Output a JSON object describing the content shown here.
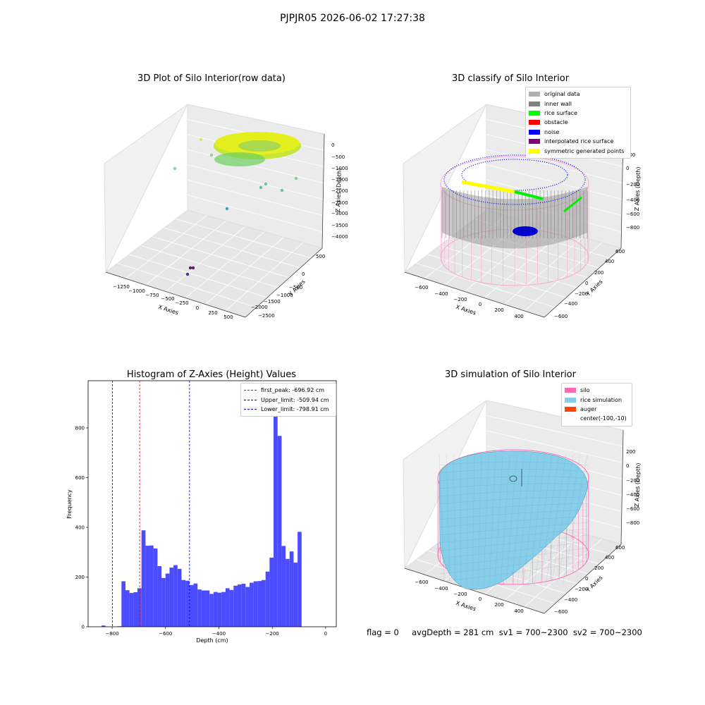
{
  "suptitle": "PJPJR05 2026-06-02 17:27:38",
  "footer": {
    "text": "flag = 0     avgDepth = 281 cm  sv1 = 700~2300  sv2 = 700~2300"
  },
  "colors": {
    "histogram_bar": "#4b4bff",
    "first_peak": "#ff0000",
    "limits": "#0000cc",
    "silo": "#ff69b4",
    "rice": "#87ceeb",
    "auger": "#ff4500"
  },
  "chart_data": [
    {
      "type": "scatter",
      "subtype": "3d",
      "title": "3D Plot of Silo Interior(row data)",
      "xlabel": "X Axies",
      "ylabel": "Y Axies",
      "zlabel": "Z Axies (Depth)",
      "x_ticks": [
        "−1250",
        "−1000",
        "−750",
        "−500",
        "−250",
        "0",
        "250",
        "500"
      ],
      "y_ticks": [
        "500",
        "0",
        "−500",
        "−1000",
        "−1500",
        "−2000",
        "−2500"
      ],
      "z_ticks": [
        "0",
        "−500",
        "−1000",
        "−1500",
        "−2000",
        "−2500",
        "−3000",
        "−3500",
        "−4000"
      ],
      "grid": true
    },
    {
      "type": "scatter",
      "subtype": "3d",
      "title": "3D classify of Silo Interior",
      "xlabel": "X Axies",
      "ylabel": "Y Axies",
      "zlabel": "Z Axies (Depth)",
      "x_ticks": [
        "−600",
        "−400",
        "−200",
        "0",
        "200",
        "400"
      ],
      "y_ticks": [
        "600",
        "400",
        "200",
        "0",
        "−200",
        "−400",
        "−600"
      ],
      "z_ticks": [
        "200",
        "0",
        "−200",
        "−400",
        "−600",
        "−800"
      ],
      "grid": true,
      "legend_position": "top-right",
      "legend": [
        {
          "label": "original data",
          "color": "#b0b0b0"
        },
        {
          "label": "inner wall",
          "color": "#808080"
        },
        {
          "label": "rice surface",
          "color": "#00ff00"
        },
        {
          "label": "obstacle",
          "color": "#ff0000"
        },
        {
          "label": "noise",
          "color": "#0000ff"
        },
        {
          "label": "interpolated rice surface",
          "color": "#800080"
        },
        {
          "label": "symmetric generated points",
          "color": "#ffff00"
        }
      ]
    },
    {
      "type": "bar",
      "subtype": "histogram",
      "title": "Histogram of Z-Axies (Height) Values",
      "xlabel": "Depth (cm)",
      "ylabel": "Frequency",
      "xlim": [
        -890,
        40
      ],
      "ylim": [
        0,
        990
      ],
      "x_ticks": [
        -800,
        -600,
        -400,
        -200,
        0
      ],
      "y_ticks": [
        0,
        200,
        400,
        600,
        800
      ],
      "bin_start": -840,
      "bin_width": 15,
      "values": [
        5,
        0,
        0,
        0,
        2,
        183,
        147,
        136,
        139,
        155,
        388,
        326,
        327,
        315,
        244,
        196,
        214,
        238,
        248,
        233,
        188,
        185,
        168,
        174,
        150,
        146,
        146,
        132,
        140,
        137,
        140,
        155,
        148,
        165,
        170,
        173,
        160,
        177,
        183,
        184,
        188,
        222,
        278,
        950,
        768,
        325,
        273,
        303,
        258,
        382
      ],
      "grid": false,
      "legend_position": "top-right",
      "annotations": [
        {
          "label": "first_peak: -696.92 cm",
          "x": -696.92,
          "color": "#ff0000"
        },
        {
          "label": "Upper_limit: -509.94 cm",
          "x": -509.94,
          "color": "#0000cc"
        },
        {
          "label": "Lower_limit: -798.91 cm",
          "x": -798.91,
          "color": "#0000cc"
        }
      ]
    },
    {
      "type": "area",
      "subtype": "3d-surface",
      "title": "3D simulation of Silo Interior",
      "xlabel": "X Axies",
      "ylabel": "Y Axies",
      "zlabel": "Z Axies (Depth)",
      "x_ticks": [
        "−600",
        "−400",
        "−200",
        "0",
        "200",
        "400"
      ],
      "y_ticks": [
        "600",
        "400",
        "200",
        "0",
        "−200",
        "−400",
        "−600"
      ],
      "z_ticks": [
        "200",
        "0",
        "−200",
        "−400",
        "−600",
        "−800"
      ],
      "grid": true,
      "legend_position": "top-right",
      "legend": [
        {
          "label": "silo",
          "color": "#ff69b4"
        },
        {
          "label": "rice simulation",
          "color": "#87ceeb"
        },
        {
          "label": "auger",
          "color": "#ff4500"
        },
        {
          "label": "center(-100,-10)",
          "color": ""
        }
      ]
    }
  ]
}
